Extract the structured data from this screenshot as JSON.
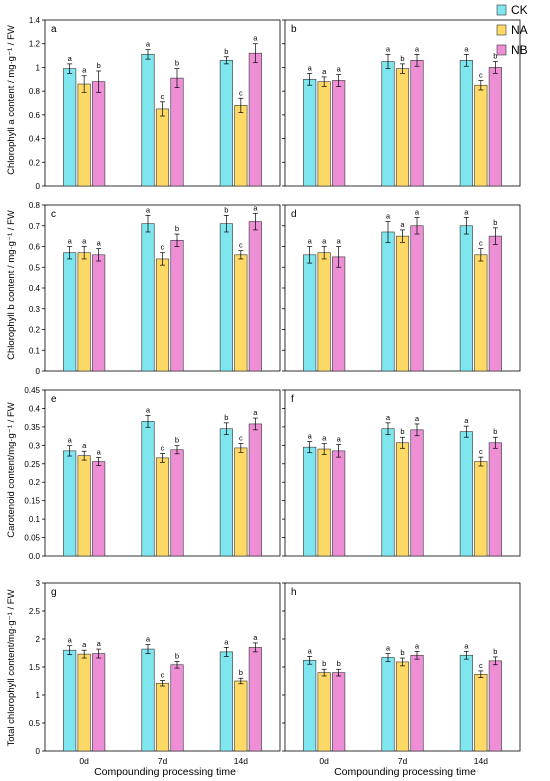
{
  "legend": {
    "position": "top-right",
    "items": [
      {
        "label": "CK",
        "color": "#7fe5ee"
      },
      {
        "label": "NA",
        "color": "#ffd966"
      },
      {
        "label": "NB",
        "color": "#ee8fd6"
      }
    ]
  },
  "xlabel": "Compounding processing time",
  "ylabels": [
    "Chlorophyll a content / mg·g⁻¹ / FW",
    "Chlorophyll b content / mg·g⁻¹ / FW",
    "Carotenoid content/mg·g⁻¹ / FW",
    "Total chlorophyll content/mg·g⁻¹ / FW"
  ],
  "chart_data": [
    {
      "panel": "a",
      "type": "bar",
      "categories": [
        "0d",
        "7d",
        "14d"
      ],
      "ylim": [
        0,
        1.4
      ],
      "ystep": 0.2,
      "ydec": 1,
      "series": [
        {
          "name": "CK",
          "values": [
            0.99,
            1.11,
            1.06
          ],
          "err": [
            0.04,
            0.04,
            0.03
          ],
          "letters": [
            "a",
            "a",
            "b"
          ]
        },
        {
          "name": "NA",
          "values": [
            0.86,
            0.65,
            0.68
          ],
          "err": [
            0.07,
            0.06,
            0.06
          ],
          "letters": [
            "a",
            "c",
            "c"
          ]
        },
        {
          "name": "NB",
          "values": [
            0.88,
            0.91,
            1.12
          ],
          "err": [
            0.09,
            0.08,
            0.08
          ],
          "letters": [
            "b",
            "b",
            "a"
          ]
        }
      ]
    },
    {
      "panel": "b",
      "type": "bar",
      "categories": [
        "0d",
        "7d",
        "14d"
      ],
      "ylim": [
        0,
        1.4
      ],
      "ystep": 0.2,
      "ydec": 1,
      "series": [
        {
          "name": "CK",
          "values": [
            0.9,
            1.05,
            1.06
          ],
          "err": [
            0.05,
            0.06,
            0.05
          ],
          "letters": [
            "a",
            "a",
            "a"
          ]
        },
        {
          "name": "NA",
          "values": [
            0.88,
            0.99,
            0.85
          ],
          "err": [
            0.04,
            0.04,
            0.04
          ],
          "letters": [
            "a",
            "b",
            "c"
          ]
        },
        {
          "name": "NB",
          "values": [
            0.89,
            1.06,
            1.0
          ],
          "err": [
            0.05,
            0.05,
            0.05
          ],
          "letters": [
            "a",
            "a",
            "b"
          ]
        }
      ]
    },
    {
      "panel": "c",
      "type": "bar",
      "categories": [
        "0d",
        "7d",
        "14d"
      ],
      "ylim": [
        0,
        0.8
      ],
      "ystep": 0.1,
      "ydec": 1,
      "series": [
        {
          "name": "CK",
          "values": [
            0.57,
            0.71,
            0.71
          ],
          "err": [
            0.03,
            0.04,
            0.04
          ],
          "letters": [
            "a",
            "a",
            "b"
          ]
        },
        {
          "name": "NA",
          "values": [
            0.57,
            0.54,
            0.56
          ],
          "err": [
            0.03,
            0.03,
            0.02
          ],
          "letters": [
            "a",
            "c",
            "c"
          ]
        },
        {
          "name": "NB",
          "values": [
            0.56,
            0.63,
            0.72
          ],
          "err": [
            0.03,
            0.03,
            0.04
          ],
          "letters": [
            "a",
            "b",
            "a"
          ]
        }
      ]
    },
    {
      "panel": "d",
      "type": "bar",
      "categories": [
        "0d",
        "7d",
        "14d"
      ],
      "ylim": [
        0,
        0.8
      ],
      "ystep": 0.1,
      "ydec": 1,
      "series": [
        {
          "name": "CK",
          "values": [
            0.56,
            0.67,
            0.7
          ],
          "err": [
            0.04,
            0.05,
            0.04
          ],
          "letters": [
            "a",
            "a",
            "a"
          ]
        },
        {
          "name": "NA",
          "values": [
            0.57,
            0.65,
            0.56
          ],
          "err": [
            0.03,
            0.03,
            0.03
          ],
          "letters": [
            "a",
            "a",
            "c"
          ]
        },
        {
          "name": "NB",
          "values": [
            0.55,
            0.7,
            0.65
          ],
          "err": [
            0.05,
            0.04,
            0.04
          ],
          "letters": [
            "a",
            "a",
            "b"
          ]
        }
      ]
    },
    {
      "panel": "e",
      "type": "bar",
      "categories": [
        "0d",
        "7d",
        "14d"
      ],
      "ylim": [
        0,
        0.45
      ],
      "ystep": 0.05,
      "ydec": 2,
      "series": [
        {
          "name": "CK",
          "values": [
            0.285,
            0.365,
            0.345
          ],
          "err": [
            0.014,
            0.016,
            0.016
          ],
          "letters": [
            "a",
            "a",
            "b"
          ]
        },
        {
          "name": "NA",
          "values": [
            0.272,
            0.266,
            0.293
          ],
          "err": [
            0.012,
            0.012,
            0.012
          ],
          "letters": [
            "a",
            "c",
            "c"
          ]
        },
        {
          "name": "NB",
          "values": [
            0.256,
            0.288,
            0.358
          ],
          "err": [
            0.011,
            0.011,
            0.016
          ],
          "letters": [
            "a",
            "b",
            "a"
          ]
        }
      ]
    },
    {
      "panel": "f",
      "type": "bar",
      "categories": [
        "0d",
        "7d",
        "14d"
      ],
      "ylim": [
        0,
        0.45
      ],
      "ystep": 0.05,
      "ydec": 2,
      "series": [
        {
          "name": "CK",
          "values": [
            0.295,
            0.345,
            0.337
          ],
          "err": [
            0.015,
            0.016,
            0.015
          ],
          "letters": [
            "a",
            "a",
            "a"
          ]
        },
        {
          "name": "NA",
          "values": [
            0.29,
            0.307,
            0.256
          ],
          "err": [
            0.015,
            0.015,
            0.012
          ],
          "letters": [
            "a",
            "b",
            "c"
          ]
        },
        {
          "name": "NB",
          "values": [
            0.285,
            0.342,
            0.307
          ],
          "err": [
            0.017,
            0.016,
            0.015
          ],
          "letters": [
            "a",
            "a",
            "b"
          ]
        }
      ]
    },
    {
      "panel": "g",
      "type": "bar",
      "categories": [
        "0d",
        "7d",
        "14d"
      ],
      "ylim": [
        0,
        3
      ],
      "ystep": 0.5,
      "ydec": 1,
      "series": [
        {
          "name": "CK",
          "values": [
            1.8,
            1.82,
            1.77
          ],
          "err": [
            0.08,
            0.08,
            0.08
          ],
          "letters": [
            "a",
            "a",
            "a"
          ]
        },
        {
          "name": "NA",
          "values": [
            1.73,
            1.21,
            1.25
          ],
          "err": [
            0.07,
            0.05,
            0.05
          ],
          "letters": [
            "a",
            "c",
            "b"
          ]
        },
        {
          "name": "NB",
          "values": [
            1.74,
            1.54,
            1.85
          ],
          "err": [
            0.08,
            0.06,
            0.08
          ],
          "letters": [
            "a",
            "b",
            "a"
          ]
        }
      ]
    },
    {
      "panel": "h",
      "type": "bar",
      "categories": [
        "0d",
        "7d",
        "14d"
      ],
      "ylim": [
        0,
        3
      ],
      "ystep": 0.5,
      "ydec": 1,
      "series": [
        {
          "name": "CK",
          "values": [
            1.62,
            1.67,
            1.71
          ],
          "err": [
            0.07,
            0.07,
            0.07
          ],
          "letters": [
            "a",
            "a",
            "a"
          ]
        },
        {
          "name": "NA",
          "values": [
            1.4,
            1.59,
            1.37
          ],
          "err": [
            0.06,
            0.07,
            0.06
          ],
          "letters": [
            "b",
            "b",
            "c"
          ]
        },
        {
          "name": "NB",
          "values": [
            1.4,
            1.71,
            1.61
          ],
          "err": [
            0.06,
            0.07,
            0.07
          ],
          "letters": [
            "b",
            "a",
            "b"
          ]
        }
      ]
    }
  ]
}
